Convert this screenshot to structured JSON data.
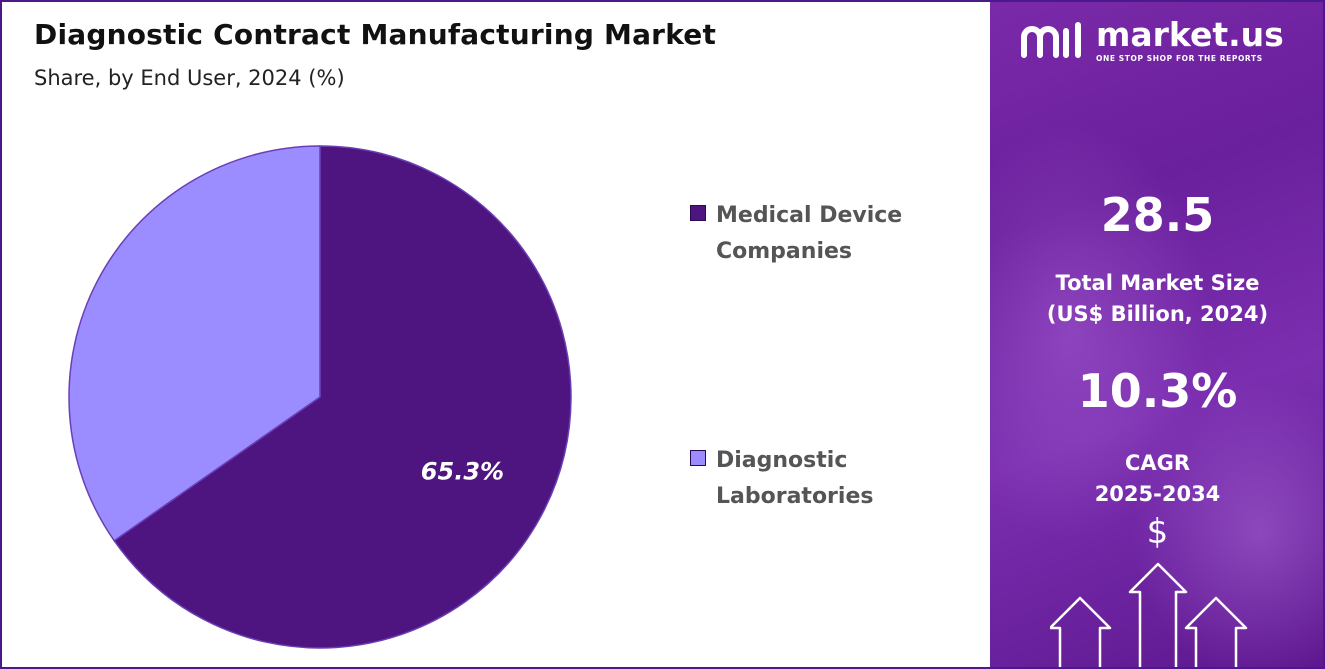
{
  "header": {
    "title": "Diagnostic Contract Manufacturing Market",
    "subtitle": "Share, by End User, 2024 (%)"
  },
  "chart_data": {
    "type": "pie",
    "categories": [
      "Medical Device Companies",
      "Diagnostic Laboratories"
    ],
    "values": [
      65.3,
      34.7
    ],
    "colors": [
      "#4e1480",
      "#9b8cff"
    ],
    "data_labels": [
      "65.3%",
      ""
    ],
    "legend_items": [
      {
        "line1": "Medical Device",
        "line2": "Companies"
      },
      {
        "line1": "Diagnostic",
        "line2": "Laboratories"
      }
    ],
    "legend_placement": "right"
  },
  "brand": {
    "name": "market.us",
    "tagline": "ONE STOP SHOP FOR THE REPORTS",
    "icon": "market-us-logo"
  },
  "stats": {
    "market_size_value": "28.5",
    "market_size_label_1": "Total Market Size",
    "market_size_label_2": "(US$ Billion, 2024)",
    "cagr_value": "10.3%",
    "cagr_label_1": "CAGR",
    "cagr_label_2": "2025-2034",
    "currency_symbol": "$"
  },
  "colors": {
    "panel_purple": "#6a1f9c",
    "frame": "#4a1a8a"
  }
}
